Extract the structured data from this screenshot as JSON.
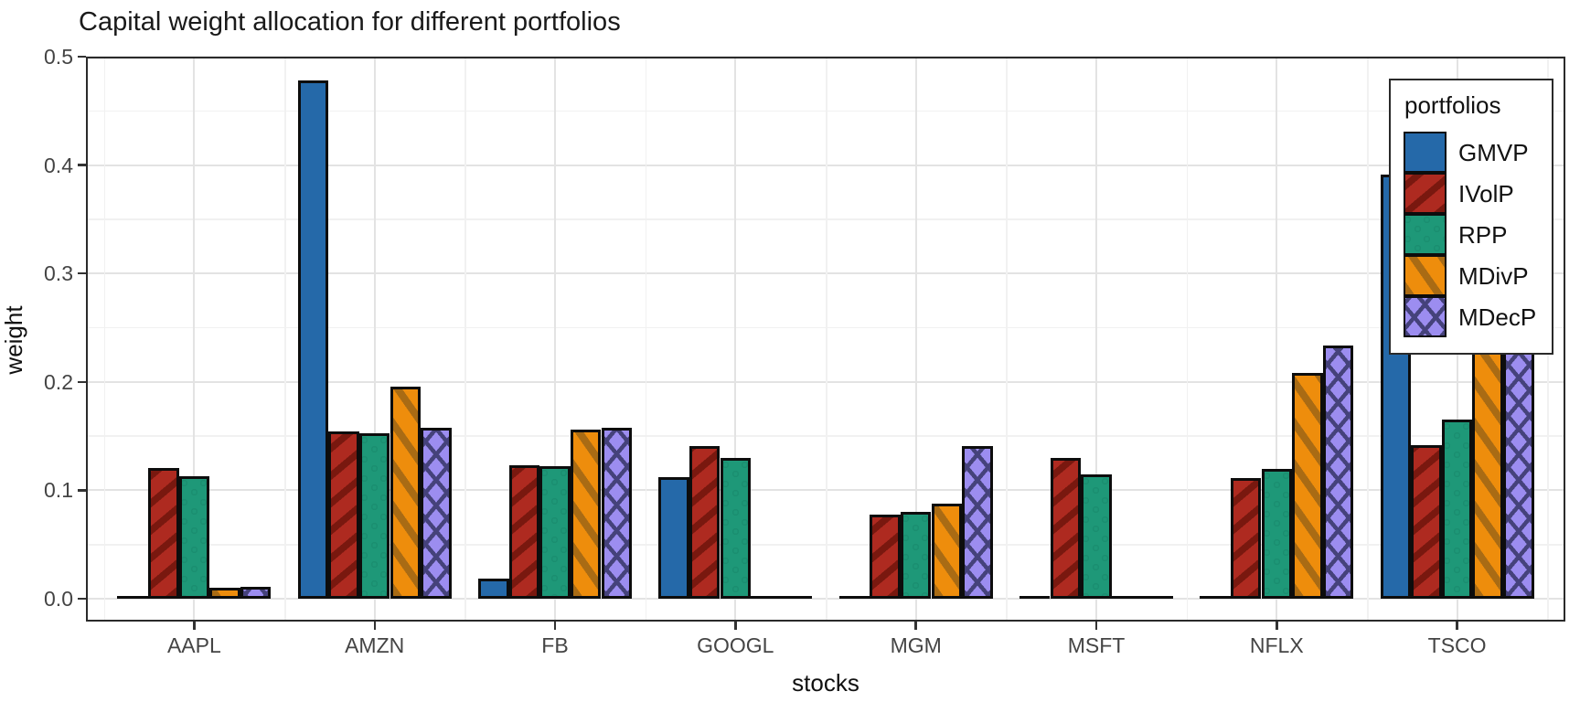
{
  "title": "Capital weight allocation for different portfolios",
  "chart_data": {
    "type": "bar",
    "title": "Capital weight allocation for different portfolios",
    "xlabel": "stocks",
    "ylabel": "weight",
    "legend_title": "portfolios",
    "legend_position": "inside top-right",
    "grid": "major and minor horizontal + vertical, light gray on white (theme_bw)",
    "ylim": [
      0.0,
      0.5
    ],
    "yticks": [
      0.0,
      0.1,
      0.2,
      0.3,
      0.4,
      0.5
    ],
    "yticks_minor": [
      0.05,
      0.15,
      0.25,
      0.35,
      0.45
    ],
    "categories": [
      "AAPL",
      "AMZN",
      "FB",
      "GOOGL",
      "MGM",
      "MSFT",
      "NFLX",
      "TSCO"
    ],
    "series": [
      {
        "name": "GMVP",
        "color": "#2569A9",
        "pattern": "solid",
        "pattern_color": "#2569A9",
        "values": [
          0.0,
          0.478,
          0.019,
          0.112,
          0.0,
          0.0,
          0.0,
          0.391
        ]
      },
      {
        "name": "IVolP",
        "color": "#AE2A20",
        "pattern": "stripe-up",
        "pattern_color": "#79180F",
        "values": [
          0.121,
          0.154,
          0.123,
          0.141,
          0.078,
          0.13,
          0.111,
          0.142
        ]
      },
      {
        "name": "RPP",
        "color": "#1E9878",
        "pattern": "dots",
        "pattern_color": "#147A60",
        "values": [
          0.113,
          0.153,
          0.122,
          0.13,
          0.08,
          0.115,
          0.12,
          0.165
        ]
      },
      {
        "name": "MDivP",
        "color": "#EE8D0C",
        "pattern": "stripe-down",
        "pattern_color": "#A96B14",
        "values": [
          0.01,
          0.196,
          0.156,
          0.0,
          0.088,
          0.0,
          0.208,
          0.342
        ]
      },
      {
        "name": "MDecP",
        "color": "#9C8DF0",
        "pattern": "crosshatch",
        "pattern_color": "#45427B",
        "values": [
          0.011,
          0.158,
          0.158,
          0.0,
          0.141,
          0.0,
          0.234,
          0.298
        ]
      }
    ]
  },
  "style": {
    "background": "#ffffff",
    "panel_border": "#2a2a2a",
    "bar_outline": "#0d0d0d",
    "grid_major": "#e3e3e3",
    "grid_minor": "#f1f1f1",
    "tick_color": "#333333",
    "tick_label_color": "#444444",
    "text_color": "#111111"
  }
}
